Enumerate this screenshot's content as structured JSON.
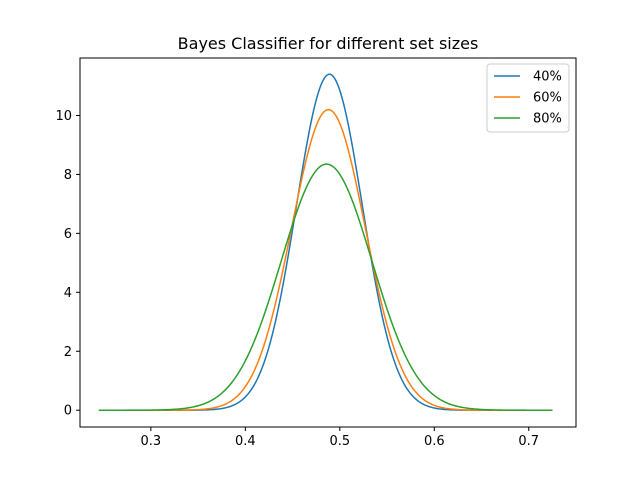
{
  "chart_data": {
    "type": "line",
    "title": "Bayes Classifier for different set sizes",
    "xlabel": "",
    "ylabel": "",
    "xlim": [
      0.225,
      0.75
    ],
    "ylim": [
      -0.57,
      11.95
    ],
    "xticks": [
      0.3,
      0.4,
      0.5,
      0.6,
      0.7
    ],
    "xtick_labels": [
      "0.3",
      "0.4",
      "0.5",
      "0.6",
      "0.7"
    ],
    "yticks": [
      0,
      2,
      4,
      6,
      8,
      10
    ],
    "ytick_labels": [
      "0",
      "2",
      "4",
      "6",
      "8",
      "10"
    ],
    "grid": false,
    "legend_position": "upper-right",
    "series": [
      {
        "name": "40%",
        "color": "#1f77b4",
        "x_range": [
          0.245,
          0.725
        ],
        "distribution": "gaussian",
        "mean": 0.489,
        "std": 0.035,
        "peak": 11.4
      },
      {
        "name": "60%",
        "color": "#ff7f0e",
        "x_range": [
          0.245,
          0.725
        ],
        "distribution": "gaussian",
        "mean": 0.488,
        "std": 0.039,
        "peak": 10.2
      },
      {
        "name": "80%",
        "color": "#2ca02c",
        "x_range": [
          0.245,
          0.725
        ],
        "distribution": "gaussian",
        "mean": 0.486,
        "std": 0.048,
        "peak": 8.35
      }
    ]
  }
}
